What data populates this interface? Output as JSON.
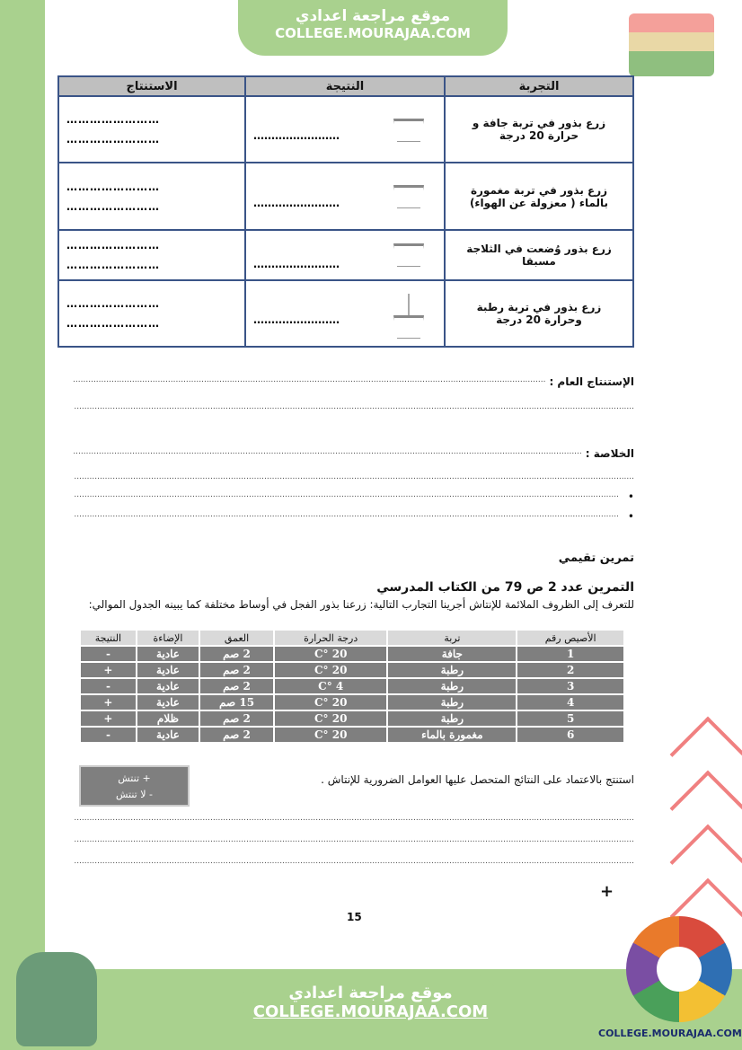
{
  "header": {
    "site_ar": "موقع مراجعة اعدادي",
    "site_en": "COLLEGE.MOURAJAA.COM"
  },
  "table1": {
    "headers": [
      "التجربة",
      "النتيجة",
      "الاستنتاج"
    ],
    "rows": [
      {
        "experiment": "زرع بذور في تربة جافة و حرارة 20 درجة",
        "pot": "empty-pot-icon"
      },
      {
        "experiment": "زرع بذور في تربة مغمورة بالماء ( معزولة عن الهواء)",
        "pot": "empty-pot-icon"
      },
      {
        "experiment": "زرع بذور وُضعت في الثلاجة مسبقا",
        "pot": "empty-pot-icon"
      },
      {
        "experiment": "زرع بذور في تربة رطبة وحرارة 20 درجة",
        "pot": "seedling-pot-icon"
      }
    ],
    "dots": "……………………"
  },
  "general_conclusion": {
    "label": "الإستنتاج العام :"
  },
  "summary": {
    "label": "الخلاصة :"
  },
  "exercise": {
    "title": "تمرين تقيمي",
    "subtitle": "التمرين عدد 2 ص 79 من الكتاب المدرسي",
    "intro": "للتعرف إلى الظروف الملائمة للإنتاش أجرينا التجارب التالية: زرعنا بذور الفجل في أوساط مختلفة كما يبينه الجدول الموالي:",
    "headers": [
      "الأصيص رقم",
      "تربة",
      "درجة الحرارة",
      "العمق",
      "الإضاءة",
      "النتيجة"
    ],
    "rows": [
      [
        "1",
        "جافة",
        "20 °C",
        "2 صم",
        "عادية",
        "-"
      ],
      [
        "2",
        "رطبة",
        "20 °C",
        "2 صم",
        "عادية",
        "+"
      ],
      [
        "3",
        "رطبة",
        "4 °C",
        "2 صم",
        "عادية",
        "-"
      ],
      [
        "4",
        "رطبة",
        "20 °C",
        "15 صم",
        "عادية",
        "+"
      ],
      [
        "5",
        "رطبة",
        "20 °C",
        "2 صم",
        "ظلام",
        "+"
      ],
      [
        "6",
        "مغمورة بالماء",
        "20 °C",
        "2 صم",
        "عادية",
        "-"
      ]
    ],
    "legend": [
      "+ تنتش",
      "- لا تنتش"
    ],
    "question": "استنتج بالاعتماد على النتائج المتحصل عليها العوامل الضرورية للإنتاش ."
  },
  "plus_mark": "+",
  "page_number": "15",
  "footer": {
    "site_ar": "موقع مراجعة اعدادي",
    "site_en": "COLLEGE.MOURAJAA.COM",
    "logo_text": "COLLEGE.MOURAJAA.COM"
  }
}
